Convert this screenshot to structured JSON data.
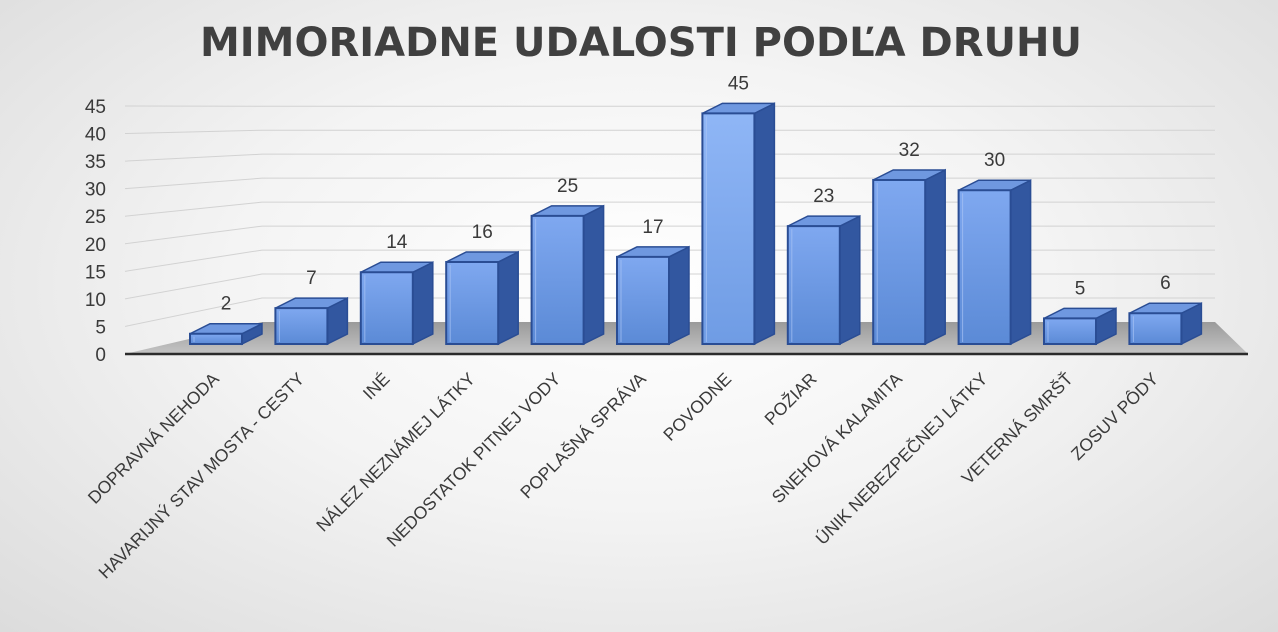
{
  "chart_data": {
    "type": "bar",
    "title": "MIMORIADNE UDALOSTI PODĽA DRUHU",
    "xlabel": "",
    "ylabel": "",
    "ylim": [
      0,
      45
    ],
    "yticks": [
      0,
      5,
      10,
      15,
      20,
      25,
      30,
      35,
      40,
      45
    ],
    "grid": true,
    "three_d": true,
    "bar_color": "#4472c4",
    "categories": [
      "DOPRAVNÁ NEHODA",
      "HAVARIJNÝ STAV MOSTA - CESTY",
      "INÉ",
      "NÁLEZ NEZNÁMEJ LÁTKY",
      "NEDOSTATOK PITNEJ VODY",
      "POPLAŠNÁ SPRÁVA",
      "POVODNE",
      "POŽIAR",
      "SNEHOVÁ KALAMITA",
      "ÚNIK NEBEZPEČNEJ LÁTKY",
      "VETERNÁ SMRŠŤ",
      "ZOSUV PÔDY"
    ],
    "values": [
      2,
      7,
      14,
      16,
      25,
      17,
      45,
      23,
      32,
      30,
      5,
      6
    ]
  }
}
